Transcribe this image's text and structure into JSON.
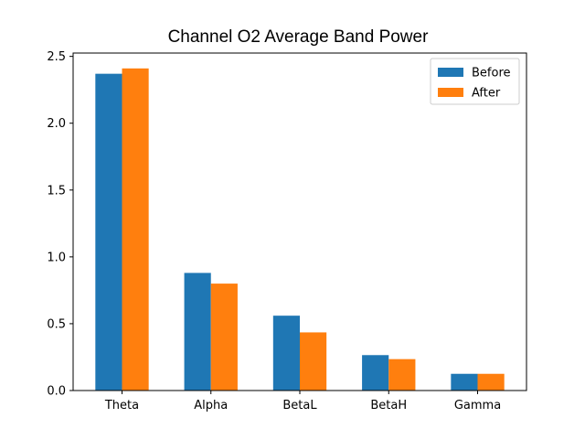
{
  "chart_data": {
    "type": "bar",
    "title": "Channel O2 Average Band Power",
    "xlabel": "",
    "ylabel": "",
    "categories": [
      "Theta",
      "Alpha",
      "BetaL",
      "BetaH",
      "Gamma"
    ],
    "series": [
      {
        "name": "Before",
        "color": "#1f77b4",
        "values": [
          2.37,
          0.88,
          0.56,
          0.265,
          0.125
        ]
      },
      {
        "name": "After",
        "color": "#ff7f0e",
        "values": [
          2.41,
          0.8,
          0.435,
          0.235,
          0.125
        ]
      }
    ],
    "ylim": [
      0,
      2.5
    ],
    "yticks": [
      "0.0",
      "0.5",
      "1.0",
      "1.5",
      "2.0",
      "2.5"
    ],
    "grid": false,
    "legend_position": "top-right"
  }
}
